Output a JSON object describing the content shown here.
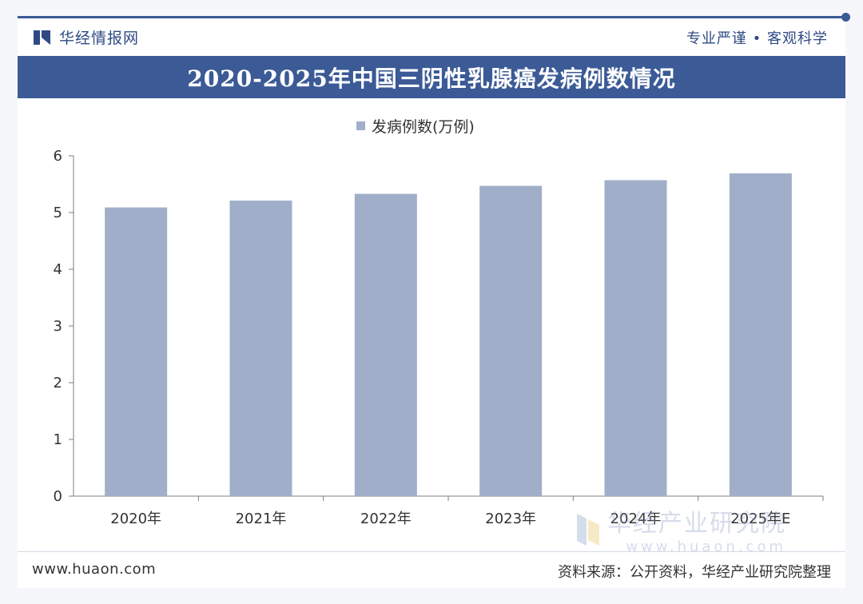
{
  "header": {
    "brand_name": "华经情报网",
    "slogan": "专业严谨 • 客观科学"
  },
  "chart_data": {
    "type": "bar",
    "title": "2020-2025年中国三阴性乳腺癌发病例数情况",
    "categories": [
      "2020年",
      "2021年",
      "2022年",
      "2023年",
      "2024年",
      "2025年E"
    ],
    "series": [
      {
        "name": "发病例数(万例)",
        "values": [
          5.09,
          5.21,
          5.33,
          5.47,
          5.57,
          5.69
        ]
      }
    ],
    "ylim": [
      0,
      6
    ],
    "yticks": [
      "0",
      "1",
      "2",
      "3",
      "4",
      "5",
      "6"
    ],
    "legend": "top-center",
    "grid": false,
    "bar_color": "#a1aec9"
  },
  "footer": {
    "website": "www.huaon.com",
    "source": "资料来源：公开资料，华经产业研究院整理"
  },
  "watermark": {
    "name": "华经产业研究院",
    "url": "www.huaon.com"
  },
  "colors": {
    "brand": "#3b5a96",
    "bar": "#a1aec9"
  }
}
